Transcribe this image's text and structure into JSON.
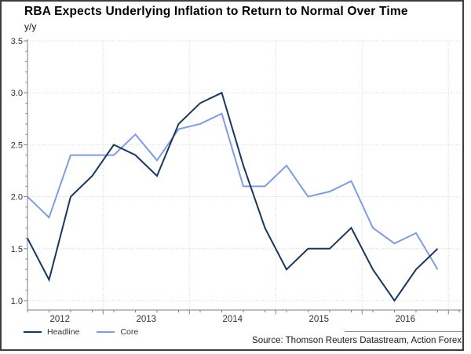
{
  "title": "RBA Expects Underlying Inflation to Return to Normal Over Time",
  "unit_label": "y/y",
  "source": "Source: Thomson Reuters Datastream, Action Forex",
  "legend": [
    {
      "label": "Headline",
      "color": "#17375e"
    },
    {
      "label": "Core",
      "color": "#7d9ee2"
    }
  ],
  "colors": {
    "headline_line": "#17375e",
    "core_line": "#7d9ee2",
    "gridline": "#d4d4d4",
    "axis": "#7f7f7f",
    "tick_text": "#333333",
    "frame_border": "#3e3e3e"
  },
  "chart_data": {
    "type": "line",
    "title": "RBA Expects Underlying Inflation to Return to Normal Over Time",
    "ylabel": "y/y",
    "ylim": [
      1.0,
      3.5
    ],
    "y_ticks": [
      3.5,
      3.0,
      2.5,
      2.0,
      1.5,
      1.0
    ],
    "x_year_labels": [
      "2012",
      "2013",
      "2014",
      "2015",
      "2016"
    ],
    "grid": "dotted, horizontal at 0.5 steps and vertical at year boundaries",
    "legend_position": "bottom-left",
    "categories": [
      "2012 Q1",
      "2012 Q2",
      "2012 Q3",
      "2012 Q4",
      "2013 Q1",
      "2013 Q2",
      "2013 Q3",
      "2013 Q4",
      "2014 Q1",
      "2014 Q2",
      "2014 Q3",
      "2014 Q4",
      "2015 Q1",
      "2015 Q2",
      "2015 Q3",
      "2015 Q4",
      "2016 Q1",
      "2016 Q2",
      "2016 Q3",
      "2016 Q4"
    ],
    "series": [
      {
        "name": "Core",
        "color": "#7d9ee2",
        "values": [
          2.0,
          1.8,
          2.4,
          2.4,
          2.4,
          2.6,
          2.35,
          2.65,
          2.7,
          2.8,
          2.1,
          2.1,
          2.3,
          2.0,
          2.05,
          2.15,
          1.7,
          1.55,
          1.65,
          1.3
        ]
      },
      {
        "name": "Headline",
        "color": "#17375e",
        "values": [
          1.6,
          1.2,
          2.0,
          2.2,
          2.5,
          2.4,
          2.2,
          2.7,
          2.9,
          3.0,
          2.3,
          1.7,
          1.3,
          1.5,
          1.5,
          1.7,
          1.3,
          1.0,
          1.3,
          1.5
        ]
      }
    ]
  }
}
